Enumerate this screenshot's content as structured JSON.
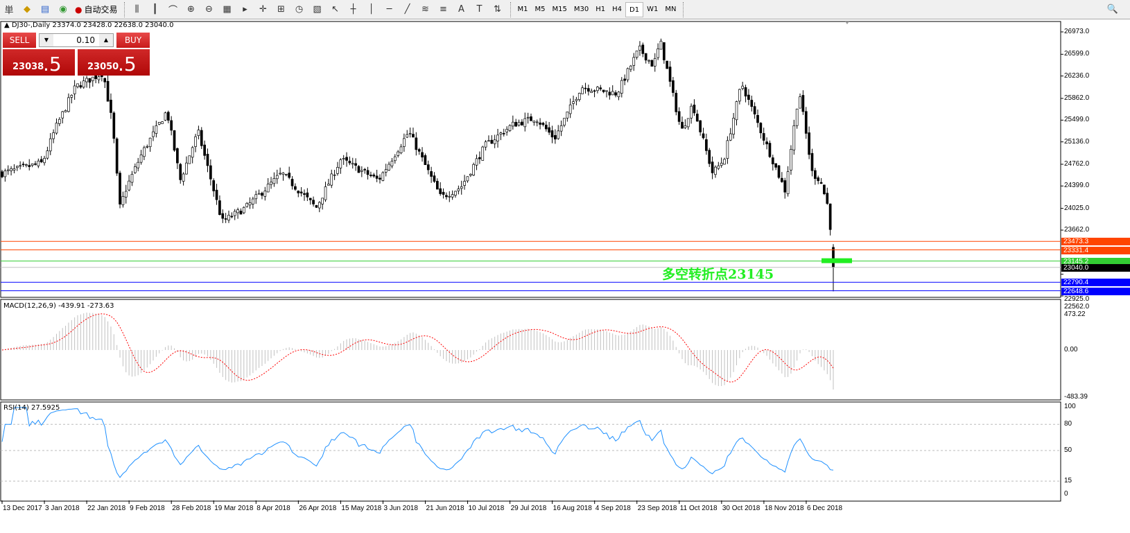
{
  "toolbar": {
    "items": [
      {
        "name": "order-button",
        "glyph": "単"
      },
      {
        "name": "navigator-icon",
        "glyph": "◆"
      },
      {
        "name": "terminal-icon",
        "glyph": "▤"
      },
      {
        "name": "signals-icon",
        "glyph": "◉"
      }
    ],
    "autotrade_label": "自动交易",
    "chart_tools": [
      "⫼",
      "┃",
      "⌒",
      "⊕",
      "⊖",
      "▦",
      "▸",
      "✛",
      "⊞",
      "◷",
      "▧",
      "↖",
      "┼",
      "│",
      "─",
      "╱",
      "≋",
      "≡",
      "A",
      "T",
      "⇅"
    ],
    "timeframes": [
      "M1",
      "M5",
      "M15",
      "M30",
      "H1",
      "H4",
      "D1",
      "W1",
      "MN"
    ],
    "active_timeframe": "D1",
    "search_icon": "🔍"
  },
  "symbol_info": "▲ DJ30-,Daily  23374.0 23428.0 22638.0 23040.0",
  "trade_panel": {
    "sell_label": "SELL",
    "buy_label": "BUY",
    "lot": "0.10",
    "sell_price_main": "23038",
    "sell_price_big": ".5",
    "buy_price_main": "23050",
    "buy_price_big": ".5"
  },
  "annotation": "多空转折点23145",
  "price_axis": {
    "ticks": [
      "26973.0",
      "26599.0",
      "26236.0",
      "25862.0",
      "25499.0",
      "25136.0",
      "24762.0",
      "24399.0",
      "24025.0",
      "23662.0",
      "22925.0",
      "22562.0"
    ],
    "levels": [
      {
        "value": "23473.3",
        "color": "#ff4500",
        "line": "#ff4500"
      },
      {
        "value": "23331.4",
        "color": "#ff4500",
        "line": "#ff4500"
      },
      {
        "value": "23145.2",
        "color": "#32cd32",
        "line": "#32cd32"
      },
      {
        "value": "23040.0",
        "color": "#000000",
        "line": "#c0c0c0"
      },
      {
        "value": "22790.4",
        "color": "#0000ff",
        "line": "#0000ff"
      },
      {
        "value": "22648.6",
        "color": "#0000ff",
        "line": "#0000ff"
      }
    ]
  },
  "macd": {
    "title": "MACD(12,26,9) -439.91 -273.63",
    "ticks": [
      "473.22",
      "0.00",
      "-483.39"
    ]
  },
  "rsi": {
    "title": "RSI(14) 27.5925",
    "ticks": [
      "100",
      "80",
      "50",
      "15",
      "0"
    ]
  },
  "chart_data": {
    "type": "candlestick",
    "symbol": "DJ30-",
    "period": "Daily",
    "last_bar": {
      "open": 23374.0,
      "high": 23428.0,
      "low": 22638.0,
      "close": 23040.0
    },
    "ylim": [
      22562.0,
      26973.0
    ],
    "x_tick_labels": [
      "13 Dec 2017",
      "3 Jan 2018",
      "22 Jan 2018",
      "9 Feb 2018",
      "28 Feb 2018",
      "19 Mar 2018",
      "8 Apr 2018",
      "26 Apr 2018",
      "15 May 2018",
      "3 Jun 2018",
      "21 Jun 2018",
      "10 Jul 2018",
      "29 Jul 2018",
      "16 Aug 2018",
      "4 Sep 2018",
      "23 Sep 2018",
      "11 Oct 2018",
      "30 Oct 2018",
      "18 Nov 2018",
      "6 Dec 2018"
    ],
    "x_tick_dates": [
      "2017-12-13",
      "2018-01-03",
      "2018-01-22",
      "2018-02-09",
      "2018-02-28",
      "2018-03-19",
      "2018-04-08",
      "2018-04-26",
      "2018-05-15",
      "2018-06-03",
      "2018-06-21",
      "2018-07-10",
      "2018-07-29",
      "2018-08-16",
      "2018-09-04",
      "2018-09-23",
      "2018-10-11",
      "2018-10-30",
      "2018-11-18",
      "2018-12-06"
    ],
    "approx_closes": [
      [
        "2017-12-13",
        24612
      ],
      [
        "2018-01-02",
        24785
      ],
      [
        "2018-01-08",
        25364
      ],
      [
        "2018-01-17",
        26058
      ],
      [
        "2018-01-29",
        26290
      ],
      [
        "2018-02-02",
        25422
      ],
      [
        "2018-02-05",
        24033
      ],
      [
        "2018-02-08",
        24380
      ],
      [
        "2018-02-15",
        24960
      ],
      [
        "2018-02-26",
        25654
      ],
      [
        "2018-03-04",
        24496
      ],
      [
        "2018-03-12",
        25306
      ],
      [
        "2018-03-23",
        23802
      ],
      [
        "2018-04-03",
        24033
      ],
      [
        "2018-04-19",
        24612
      ],
      [
        "2018-05-04",
        24033
      ],
      [
        "2018-05-15",
        24843
      ],
      [
        "2018-06-01",
        24496
      ],
      [
        "2018-06-14",
        25306
      ],
      [
        "2018-06-28",
        24207
      ],
      [
        "2018-07-07",
        24380
      ],
      [
        "2018-07-18",
        25075
      ],
      [
        "2018-07-30",
        25422
      ],
      [
        "2018-08-09",
        25538
      ],
      [
        "2018-08-17",
        25190
      ],
      [
        "2018-08-29",
        26058
      ],
      [
        "2018-09-14",
        25943
      ],
      [
        "2018-09-24",
        26695
      ],
      [
        "2018-09-30",
        26406
      ],
      [
        "2018-10-03",
        26811
      ],
      [
        "2018-10-12",
        25306
      ],
      [
        "2018-10-17",
        25769
      ],
      [
        "2018-10-26",
        24612
      ],
      [
        "2018-10-31",
        24843
      ],
      [
        "2018-11-08",
        26116
      ],
      [
        "2018-11-18",
        25190
      ],
      [
        "2018-11-27",
        24323
      ],
      [
        "2018-12-03",
        26000
      ],
      [
        "2018-12-09",
        24612
      ],
      [
        "2018-12-13",
        24496
      ],
      [
        "2018-12-17",
        24033
      ],
      [
        "2018-12-20",
        23040
      ]
    ],
    "macd_range": [
      -483.39,
      473.22
    ],
    "rsi_range": [
      0,
      100
    ],
    "rsi_levels": [
      80,
      50,
      15
    ]
  }
}
